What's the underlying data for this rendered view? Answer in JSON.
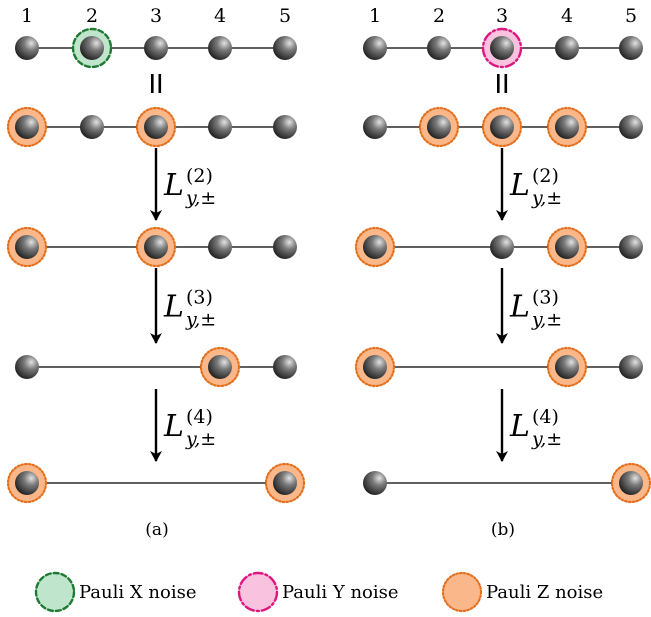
{
  "site_numbers": [
    "1",
    "2",
    "3",
    "4",
    "5"
  ],
  "equals_sign": "=",
  "operator": {
    "letter": "L",
    "subscript": "y,±",
    "steps": [
      "(2)",
      "(3)",
      "(4)"
    ]
  },
  "panels": [
    {
      "caption": "(a)",
      "rows": [
        {
          "nodes": [
            1,
            2,
            3,
            4,
            5
          ],
          "noise": {
            "2": "X"
          }
        },
        {
          "nodes": [
            1,
            2,
            3,
            4,
            5
          ],
          "noise": {
            "1": "Z",
            "3": "Z"
          }
        },
        {
          "nodes": [
            1,
            3,
            4,
            5
          ],
          "noise": {
            "1": "Z",
            "3": "Z"
          }
        },
        {
          "nodes": [
            1,
            4,
            5
          ],
          "noise": {
            "4": "Z"
          }
        },
        {
          "nodes": [
            1,
            5
          ],
          "noise": {
            "1": "Z",
            "5": "Z"
          }
        }
      ]
    },
    {
      "caption": "(b)",
      "rows": [
        {
          "nodes": [
            1,
            2,
            3,
            4,
            5
          ],
          "noise": {
            "3": "Y"
          }
        },
        {
          "nodes": [
            1,
            2,
            3,
            4,
            5
          ],
          "noise": {
            "2": "Z",
            "3": "Z",
            "4": "Z"
          }
        },
        {
          "nodes": [
            1,
            3,
            4,
            5
          ],
          "noise": {
            "1": "Z",
            "4": "Z"
          }
        },
        {
          "nodes": [
            1,
            4,
            5
          ],
          "noise": {
            "1": "Z",
            "4": "Z"
          }
        },
        {
          "nodes": [
            1,
            5
          ],
          "noise": {
            "5": "Z"
          }
        }
      ]
    }
  ],
  "legend": [
    {
      "type": "X",
      "label": "Pauli X noise"
    },
    {
      "type": "Y",
      "label": "Pauli Y noise"
    },
    {
      "type": "Z",
      "label": "Pauli Z noise"
    }
  ],
  "noise_colors": {
    "X": {
      "fill": "#bfe6cc",
      "stroke": "#1e7a33"
    },
    "Y": {
      "fill": "#f9c2df",
      "stroke": "#e0167f"
    },
    "Z": {
      "fill": "#f9b78a",
      "stroke": "#e4711f"
    }
  }
}
